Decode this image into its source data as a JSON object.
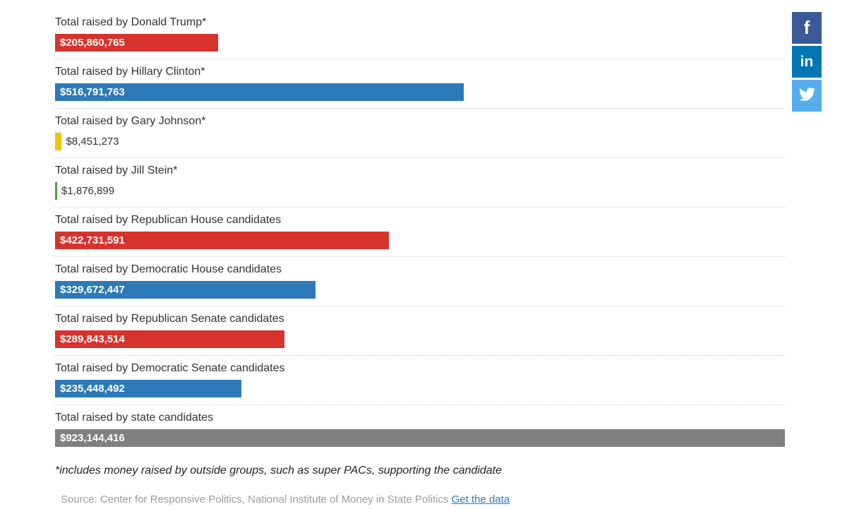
{
  "chart_data": {
    "type": "bar",
    "orientation": "horizontal",
    "max_value": 923144416,
    "rows": [
      {
        "label": "Total raised by Donald Trump*",
        "value": 205860765,
        "value_label": "$205,860,765",
        "color": "#d6332d",
        "value_position": "inside"
      },
      {
        "label": "Total raised by Hillary Clinton*",
        "value": 516791763,
        "value_label": "$516,791,763",
        "color": "#2d7ab8",
        "value_position": "inside"
      },
      {
        "label": "Total raised by Gary Johnson*",
        "value": 8451273,
        "value_label": "$8,451,273",
        "color": "#f5c500",
        "value_position": "outside"
      },
      {
        "label": "Total raised by Jill Stein*",
        "value": 1876899,
        "value_label": "$1,876,899",
        "color": "#4aa23c",
        "value_position": "outside"
      },
      {
        "label": "Total raised by Republican House candidates",
        "value": 422731591,
        "value_label": "$422,731,591",
        "color": "#d6332d",
        "value_position": "inside"
      },
      {
        "label": "Total raised by Democratic House candidates",
        "value": 329672447,
        "value_label": "$329,672,447",
        "color": "#2d7ab8",
        "value_position": "inside"
      },
      {
        "label": "Total raised by Republican Senate candidates",
        "value": 289843514,
        "value_label": "$289,843,514",
        "color": "#d6332d",
        "value_position": "inside"
      },
      {
        "label": "Total raised by Democratic Senate candidates",
        "value": 235448492,
        "value_label": "$235,448,492",
        "color": "#2d7ab8",
        "value_position": "inside"
      },
      {
        "label": "Total raised by state candidates",
        "value": 923144416,
        "value_label": "$923,144,416",
        "color": "#808080",
        "value_position": "inside"
      }
    ],
    "footnote": "*includes money raised by outside groups, such as super PACs, supporting the candidate",
    "source_prefix": "Source: Center for Responsive Politics, National Institute of Money in State Politics ",
    "source_link_label": "Get the data"
  },
  "share_buttons": {
    "facebook_label": "f",
    "linkedin_label": "in",
    "twitter_icon": "twitter-bird-icon"
  },
  "colors": {
    "separator_gray": "#cccccc",
    "facebook_blue": "#3b5998",
    "linkedin_blue": "#0077b5",
    "twitter_blue": "#55acee",
    "link_blue": "#2b7bbf"
  }
}
